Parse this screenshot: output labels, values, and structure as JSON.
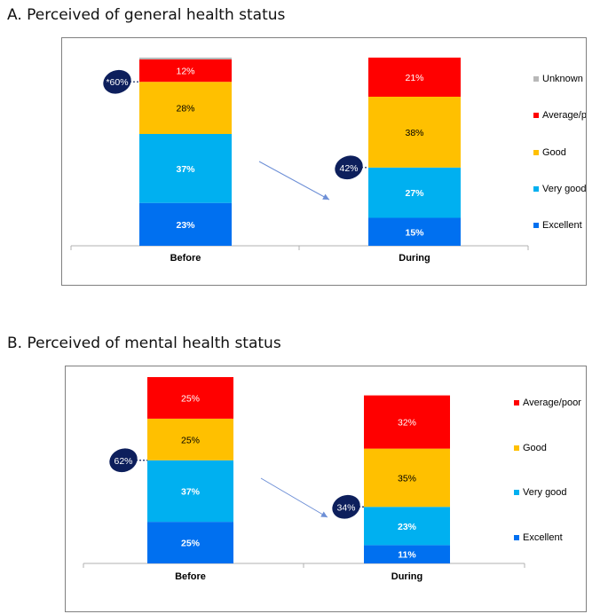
{
  "colors": {
    "Unknown": "#b8b8b8",
    "Average/poor": "#ff0000",
    "Good": "#ffc000",
    "Very good": "#00b0f0",
    "Excellent": "#0070f0",
    "callout": "#0d1f5c",
    "arrow": "#6d8fd6"
  },
  "chart_data": [
    {
      "type": "bar",
      "stacked": true,
      "title": "A.  Perceived of general health status",
      "categories": [
        "Before",
        "During"
      ],
      "series": [
        {
          "name": "Excellent",
          "values": [
            23,
            15
          ],
          "labels": [
            "23%",
            "15%"
          ]
        },
        {
          "name": "Very good",
          "values": [
            37,
            27
          ],
          "labels": [
            "37%",
            "27%"
          ]
        },
        {
          "name": "Good",
          "values": [
            28,
            38
          ],
          "labels": [
            "28%",
            "38%"
          ]
        },
        {
          "name": "Average/poor",
          "values": [
            12,
            21
          ],
          "labels": [
            "12%",
            "21%"
          ]
        },
        {
          "name": "Unknown",
          "values": [
            1,
            0
          ],
          "labels": [
            "",
            ""
          ]
        }
      ],
      "legend": [
        "Unknown",
        "Average/poor",
        "Good",
        "Very good",
        "Excellent"
      ],
      "legend_position": "right",
      "callouts": [
        "*60%",
        "42%"
      ],
      "ylim": [
        0,
        100
      ]
    },
    {
      "type": "bar",
      "stacked": true,
      "title": "B.  Perceived of mental health status",
      "categories": [
        "Before",
        "During"
      ],
      "series": [
        {
          "name": "Excellent",
          "values": [
            25,
            11
          ],
          "labels": [
            "25%",
            "11%"
          ]
        },
        {
          "name": "Very good",
          "values": [
            37,
            23
          ],
          "labels": [
            "37%",
            "23%"
          ]
        },
        {
          "name": "Good",
          "values": [
            25,
            35
          ],
          "labels": [
            "25%",
            "35%"
          ]
        },
        {
          "name": "Average/poor",
          "values": [
            25,
            32
          ],
          "labels": [
            "25%",
            "32%"
          ]
        }
      ],
      "legend": [
        "Average/poor",
        "Good",
        "Very good",
        "Excellent"
      ],
      "legend_position": "right",
      "callouts": [
        "62%",
        "34%"
      ],
      "ylim": [
        0,
        112
      ]
    }
  ]
}
